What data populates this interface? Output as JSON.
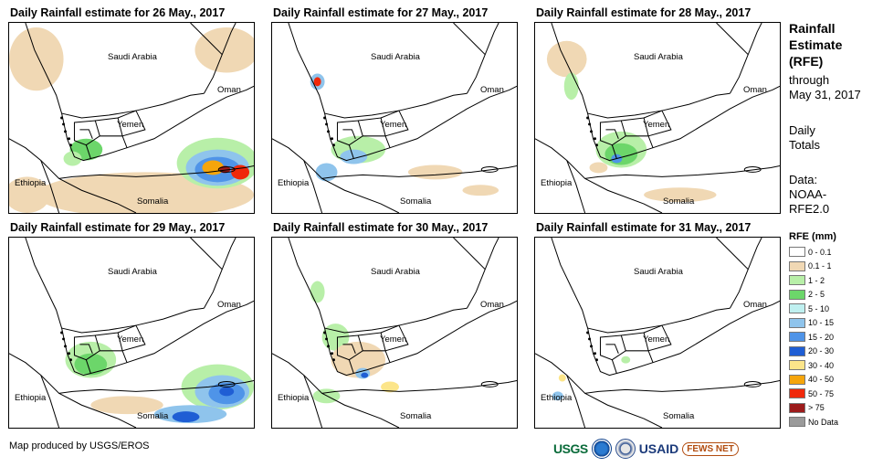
{
  "panels": [
    {
      "title": "Daily Rainfall estimate for 26 May., 2017",
      "rain": "heavy-south"
    },
    {
      "title": "Daily Rainfall estimate for 27 May., 2017",
      "rain": "light-west"
    },
    {
      "title": "Daily Rainfall estimate for 28 May., 2017",
      "rain": "moderate-west"
    },
    {
      "title": "Daily Rainfall estimate for 29 May., 2017",
      "rain": "heavy-east-sea"
    },
    {
      "title": "Daily Rainfall estimate for 30 May., 2017",
      "rain": "light-central"
    },
    {
      "title": "Daily Rainfall estimate for 31 May., 2017",
      "rain": "minimal"
    }
  ],
  "map_labels": {
    "saudi": "Saudi Arabia",
    "oman": "Oman",
    "yemen": "Yemen",
    "ethiopia": "Ethiopia",
    "somalia": "Somalia"
  },
  "side": {
    "title_lines": [
      "Rainfall",
      "Estimate",
      "(RFE)"
    ],
    "through": "through",
    "date": "May 31, 2017",
    "daily": "Daily",
    "totals": "Totals",
    "data_label": "Data:",
    "data_source_1": "NOAA-",
    "data_source_2": "RFE2.0"
  },
  "legend": {
    "title": "RFE (mm)",
    "items": [
      {
        "label": "0 - 0.1",
        "color": "#ffffff"
      },
      {
        "label": "0.1 - 1",
        "color": "#f0d8b4"
      },
      {
        "label": "1 - 2",
        "color": "#b8efa8"
      },
      {
        "label": "2 - 5",
        "color": "#6cd66a"
      },
      {
        "label": "5 - 10",
        "color": "#bff0f0"
      },
      {
        "label": "10 - 15",
        "color": "#8fc4ec"
      },
      {
        "label": "15 - 20",
        "color": "#4f94e8"
      },
      {
        "label": "20 - 30",
        "color": "#1f5ed4"
      },
      {
        "label": "30 - 40",
        "color": "#fce58a"
      },
      {
        "label": "40 - 50",
        "color": "#f5a50c"
      },
      {
        "label": "50 - 75",
        "color": "#f0280a"
      },
      {
        "label": "> 75",
        "color": "#9c1b1b"
      },
      {
        "label": "No Data",
        "color": "#9a9a9a"
      }
    ]
  },
  "credit": "Map produced by USGS/EROS",
  "logos": {
    "usgs": "USGS",
    "usaid": "USAID",
    "fews": "FEWS NET"
  }
}
